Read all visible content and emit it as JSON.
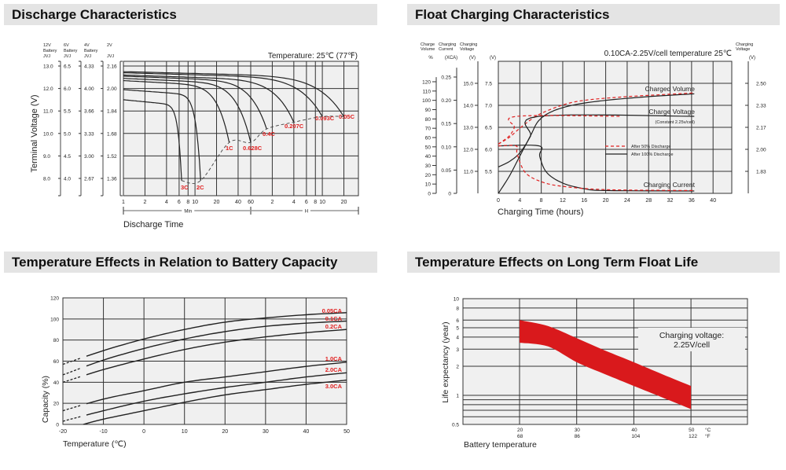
{
  "headers": {
    "discharge": "Discharge Characteristics",
    "float": "Float Charging Characteristics",
    "temp_capacity": "Temperature Effects in Relation to Battery Capacity",
    "float_life": "Temperature Effects on Long Term Float Life"
  },
  "chart_data": [
    {
      "type": "line",
      "title": "Discharge Characteristics",
      "annotation": "Temperature: 25℃ (77℉)",
      "xlabel": "Discharge Time",
      "ylabel": "Terminal Voltage (V)",
      "x_scale": "log",
      "x_ticks_min": [
        "1",
        "2",
        "4",
        "6",
        "8",
        "10",
        "20",
        "40",
        "60"
      ],
      "x_ticks_h": [
        "2",
        "4",
        "6",
        "8",
        "10",
        "20"
      ],
      "x_range_labels": {
        "min": "Min",
        "h": "H"
      },
      "voltage_columns": [
        {
          "header": [
            "12V",
            "Battery",
            "JVJ"
          ],
          "ticks": [
            "13.0",
            "12.0",
            "11.0",
            "10.0",
            "9.0",
            "8.0"
          ]
        },
        {
          "header": [
            "6V",
            "Battery",
            "JVJ"
          ],
          "ticks": [
            "6.5",
            "6.0",
            "5.5",
            "5.0",
            "4.5",
            "4.0"
          ]
        },
        {
          "header": [
            "4V",
            "Battery",
            "JVJ"
          ],
          "ticks": [
            "4.33",
            "4.00",
            "3.66",
            "3.33",
            "3.00",
            "2.67"
          ]
        },
        {
          "header": [
            "2V",
            "",
            "JVJ"
          ],
          "ticks": [
            "2.16",
            "2.00",
            "1.84",
            "1.68",
            "1.52",
            "1.36"
          ]
        }
      ],
      "y_ticks_12v": [
        13,
        12,
        11,
        10,
        9,
        8
      ],
      "ylim_12v": [
        7.25,
        13.2
      ],
      "series": [
        {
          "name": "3C",
          "start_v": 11.5,
          "end_min": 6.5,
          "end_v": 7.9
        },
        {
          "name": "2C",
          "start_v": 11.95,
          "end_min": 12,
          "end_v": 7.9
        },
        {
          "name": "1C",
          "start_v": 12.35,
          "end_min": 30,
          "end_v": 9.6
        },
        {
          "name": "0.628C",
          "start_v": 12.45,
          "end_min": 60,
          "end_v": 9.6
        },
        {
          "name": "0.4C",
          "start_v": 12.55,
          "end_min": 100,
          "end_v": 10.2
        },
        {
          "name": "0.207C",
          "start_v": 12.6,
          "end_min": 240,
          "end_v": 10.5
        },
        {
          "name": "0.093C",
          "start_v": 12.7,
          "end_min": 600,
          "end_v": 10.75
        },
        {
          "name": "0.05C",
          "start_v": 12.75,
          "end_min": 1200,
          "end_v": 10.75
        }
      ],
      "label_color": "#e02020"
    },
    {
      "type": "line",
      "title": "Float Charging Characteristics",
      "annotation": "0.10CA-2.25V/cell  temperature 25℃",
      "xlabel": "Charging Time (hours)",
      "x_ticks": [
        0,
        4,
        8,
        12,
        16,
        20,
        24,
        28,
        32,
        36,
        40
      ],
      "xlim": [
        0,
        43.5
      ],
      "axes": {
        "charge_volume": {
          "header": [
            "Charge",
            "Volume"
          ],
          "unit": "%",
          "ticks": [
            0,
            10,
            20,
            30,
            40,
            50,
            60,
            70,
            80,
            90,
            100,
            110,
            120
          ]
        },
        "charging_current": {
          "header": [
            "Charging",
            "Current"
          ],
          "unit": "(XCA)",
          "ticks": [
            "0",
            "0.05",
            "0.10",
            "0.15",
            "0.20",
            "0.25"
          ]
        },
        "charging_voltage_12v": {
          "header": [
            "Charging",
            "Voltage"
          ],
          "unit": "(V)",
          "ticks": [
            "11.0",
            "12.0",
            "13.0",
            "14.0",
            "15.0"
          ]
        },
        "charging_voltage_6v": {
          "unit": "(V)",
          "ticks": [
            "5.5",
            "6.0",
            "6.5",
            "7.0",
            "7.5"
          ]
        },
        "charging_voltage_cell": {
          "header": [
            "Charging",
            "Voltage"
          ],
          "unit": "(V)",
          "ticks": [
            "1.83",
            "2.00",
            "2.17",
            "2.33",
            "2.50"
          ]
        }
      },
      "curve_labels": {
        "volume": "Charged Volume",
        "voltage": "Charge Voltage",
        "voltage_note": "(Constant 2.25v/cell)",
        "current": "Charging Current"
      },
      "legend": [
        {
          "name": "After  50% Discharge",
          "style": "dashed",
          "color": "#e02020"
        },
        {
          "name": "After 100% Discharge",
          "style": "solid",
          "color": "#222222"
        }
      ],
      "series": [
        {
          "quantity": "volume_pct",
          "case": "100",
          "points": [
            [
              0,
              0
            ],
            [
              2,
              18
            ],
            [
              4,
              40
            ],
            [
              6,
              62
            ],
            [
              7.5,
              78
            ],
            [
              10,
              88
            ],
            [
              14,
              95
            ],
            [
              20,
              100
            ],
            [
              28,
              104
            ],
            [
              36.5,
              107
            ]
          ]
        },
        {
          "quantity": "volume_pct",
          "case": "50",
          "points": [
            [
              0,
              53
            ],
            [
              2,
              60
            ],
            [
              4,
              70
            ],
            [
              6,
              79
            ],
            [
              8,
              86
            ],
            [
              12,
              95
            ],
            [
              16,
              100
            ],
            [
              24,
              104
            ],
            [
              36.5,
              108
            ]
          ]
        },
        {
          "quantity": "voltage_6v",
          "case": "100",
          "points": [
            [
              0,
              5.6
            ],
            [
              2,
              5.72
            ],
            [
              4,
              5.92
            ],
            [
              6,
              6.3
            ],
            [
              7.5,
              6.75
            ],
            [
              36.5,
              6.75
            ]
          ]
        },
        {
          "quantity": "voltage_6v",
          "case": "50",
          "points": [
            [
              0,
              6.12
            ],
            [
              2,
              6.3
            ],
            [
              3,
              6.5
            ],
            [
              3.4,
              6.75
            ],
            [
              23,
              6.75
            ]
          ]
        },
        {
          "quantity": "current_ca",
          "case": "100",
          "points": [
            [
              0,
              0.102
            ],
            [
              7.6,
              0.102
            ],
            [
              7.7,
              0.08
            ],
            [
              9,
              0.045
            ],
            [
              12,
              0.022
            ],
            [
              16,
              0.01
            ],
            [
              20,
              0.006
            ],
            [
              36.5,
              0.005
            ]
          ]
        },
        {
          "quantity": "current_ca",
          "case": "50",
          "points": [
            [
              0,
              0.102
            ],
            [
              3.3,
              0.102
            ],
            [
              3.5,
              0.085
            ],
            [
              5,
              0.045
            ],
            [
              8,
              0.025
            ],
            [
              12,
              0.015
            ],
            [
              20,
              0.008
            ],
            [
              36.5,
              0.006
            ]
          ]
        }
      ]
    },
    {
      "type": "line",
      "title": "Temperature Effects in Relation to Battery Capacity",
      "xlabel": "Temperature (℃)",
      "ylabel": "Capacity (%)",
      "x_ticks": [
        -20,
        -10,
        0,
        10,
        20,
        30,
        40,
        50
      ],
      "y_ticks": [
        0,
        20,
        40,
        60,
        80,
        100,
        120
      ],
      "xlim": [
        -20,
        50
      ],
      "ylim": [
        0,
        120
      ],
      "series": [
        {
          "name": "0.05CA",
          "x": [
            -20,
            -10,
            0,
            10,
            20,
            30,
            40,
            50
          ],
          "y": [
            57,
            70,
            81,
            90,
            97,
            101,
            104,
            106
          ]
        },
        {
          "name": "0.1CA",
          "x": [
            -20,
            -10,
            0,
            10,
            20,
            30,
            40,
            50
          ],
          "y": [
            47,
            61,
            72,
            81,
            88,
            93,
            96,
            98
          ]
        },
        {
          "name": "0.2CA",
          "x": [
            -20,
            -10,
            0,
            10,
            20,
            30,
            40,
            50
          ],
          "y": [
            40,
            52,
            62,
            71,
            78,
            83,
            87,
            90
          ]
        },
        {
          "name": "1.0CA",
          "x": [
            -20,
            -10,
            0,
            10,
            20,
            30,
            40,
            50
          ],
          "y": [
            13,
            24,
            32,
            40,
            45,
            50,
            55,
            59
          ]
        },
        {
          "name": "2.0CA",
          "x": [
            -20,
            -10,
            0,
            10,
            20,
            30,
            40,
            50
          ],
          "y": [
            3,
            13,
            22,
            29,
            35,
            40,
            45,
            49
          ]
        },
        {
          "name": "3.0CA",
          "x": [
            -15,
            -10,
            0,
            10,
            20,
            30,
            40,
            50
          ],
          "y": [
            0,
            5,
            13,
            21,
            28,
            33,
            38,
            42
          ]
        }
      ],
      "label_color": "#e02020"
    },
    {
      "type": "area",
      "title": "Temperature Effects on Long Term Float Life",
      "xlabel": "Battery temperature",
      "ylabel": "Life expectancy (year)",
      "y_scale": "log",
      "ylim": [
        0.5,
        10
      ],
      "y_ticks": [
        "10",
        "8",
        "6",
        "5",
        "4",
        "3",
        "2",
        "1",
        "0.5"
      ],
      "y_grid": [
        10,
        8,
        6,
        5,
        4,
        3,
        2,
        1,
        0.9,
        0.8,
        0.7,
        0.6,
        0.5
      ],
      "xlim_c": [
        10,
        60
      ],
      "x_ticks_c": [
        "20",
        "30",
        "40",
        "50"
      ],
      "x_ticks_f": [
        "68",
        "86",
        "104",
        "122"
      ],
      "x_units": [
        "°C",
        "°F"
      ],
      "annotation": [
        "Charging voltage:",
        "2.25V/cell"
      ],
      "band": {
        "x": [
          20,
          25,
          30,
          35,
          40,
          45,
          50
        ],
        "upper": [
          6,
          5.2,
          3.9,
          2.9,
          2.2,
          1.65,
          1.25
        ],
        "lower": [
          3.5,
          3.2,
          2.2,
          1.65,
          1.25,
          0.95,
          0.72
        ]
      },
      "band_color": "#d9191c"
    }
  ]
}
